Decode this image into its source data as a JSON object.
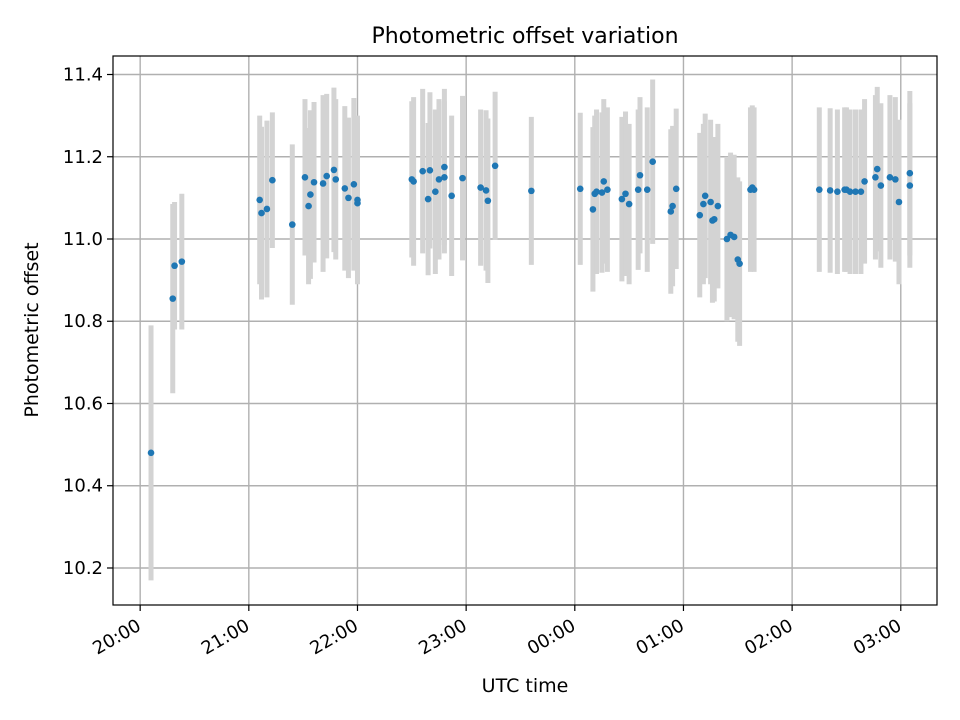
{
  "chart_data": {
    "type": "scatter",
    "title": "Photometric offset variation",
    "xlabel": "UTC time",
    "ylabel": "Photometric offset",
    "x_unit": "minutes",
    "x_ticks": [
      {
        "value": 0,
        "label": "20:00"
      },
      {
        "value": 60,
        "label": "21:00"
      },
      {
        "value": 120,
        "label": "22:00"
      },
      {
        "value": 180,
        "label": "23:00"
      },
      {
        "value": 240,
        "label": "00:00"
      },
      {
        "value": 300,
        "label": "01:00"
      },
      {
        "value": 360,
        "label": "02:00"
      },
      {
        "value": 420,
        "label": "03:00"
      }
    ],
    "y_ticks": [
      10.2,
      10.4,
      10.6,
      10.8,
      11.0,
      11.2,
      11.4
    ],
    "xlim": [
      -15,
      440
    ],
    "ylim": [
      10.11,
      11.445
    ],
    "grid": true,
    "colors": {
      "points": "#1f77b4",
      "errorbars": "#d3d3d3",
      "grid": "#b0b0b0"
    },
    "series": [
      {
        "x": [
          6,
          18,
          19,
          23,
          66,
          67,
          70,
          73,
          84,
          91,
          93,
          94,
          96,
          101,
          103,
          107,
          108,
          113,
          115,
          118,
          120,
          120,
          150,
          151,
          156,
          159,
          160,
          163,
          165,
          168,
          168,
          172,
          178,
          188,
          191,
          192,
          196,
          216,
          243,
          250,
          251,
          252,
          255,
          256,
          258,
          266,
          268,
          270,
          275,
          276,
          280,
          283,
          293,
          294,
          296,
          309,
          311,
          312,
          315,
          316,
          317,
          319,
          324,
          326,
          328,
          330,
          331,
          337,
          338,
          339,
          375,
          381,
          385,
          389,
          390,
          392,
          395,
          398,
          400,
          406,
          407,
          409,
          414,
          417,
          419,
          425,
          425
        ],
        "y": [
          10.48,
          10.855,
          10.935,
          10.945,
          11.095,
          11.063,
          11.073,
          11.143,
          11.035,
          11.15,
          11.08,
          11.108,
          11.138,
          11.135,
          11.153,
          11.168,
          11.145,
          11.123,
          11.1,
          11.133,
          11.095,
          11.087,
          11.145,
          11.14,
          11.165,
          11.097,
          11.167,
          11.115,
          11.145,
          11.15,
          11.175,
          11.105,
          11.148,
          11.125,
          11.118,
          11.093,
          11.178,
          11.117,
          11.122,
          11.072,
          11.11,
          11.115,
          11.113,
          11.14,
          11.12,
          11.097,
          11.11,
          11.085,
          11.12,
          11.155,
          11.12,
          11.188,
          11.067,
          11.08,
          11.122,
          11.058,
          11.085,
          11.105,
          11.09,
          11.045,
          11.048,
          11.08,
          11.0,
          11.01,
          11.005,
          10.95,
          10.94,
          11.12,
          11.125,
          11.12,
          11.12,
          11.118,
          11.115,
          11.12,
          11.12,
          11.115,
          11.115,
          11.115,
          11.14,
          11.15,
          11.17,
          11.13,
          11.15,
          11.145,
          11.09,
          11.16,
          11.13
        ],
        "yerr": [
          0.31,
          0.23,
          0.155,
          0.165,
          0.205,
          0.21,
          0.215,
          0.165,
          0.195,
          0.19,
          0.19,
          0.205,
          0.195,
          0.215,
          0.2,
          0.2,
          0.195,
          0.2,
          0.195,
          0.21,
          0.205,
          0.195,
          0.19,
          0.205,
          0.2,
          0.185,
          0.19,
          0.2,
          0.195,
          0.185,
          0.19,
          0.195,
          0.2,
          0.19,
          0.195,
          0.2,
          0.18,
          0.18,
          0.185,
          0.2,
          0.19,
          0.2,
          0.195,
          0.2,
          0.2,
          0.2,
          0.2,
          0.195,
          0.195,
          0.19,
          0.2,
          0.2,
          0.2,
          0.195,
          0.195,
          0.2,
          0.195,
          0.2,
          0.2,
          0.2,
          0.2,
          0.2,
          0.2,
          0.2,
          0.2,
          0.2,
          0.2,
          0.2,
          0.2,
          0.2,
          0.2,
          0.2,
          0.2,
          0.2,
          0.2,
          0.2,
          0.2,
          0.2,
          0.2,
          0.2,
          0.2,
          0.2,
          0.2,
          0.2,
          0.2,
          0.2,
          0.2
        ]
      }
    ]
  }
}
